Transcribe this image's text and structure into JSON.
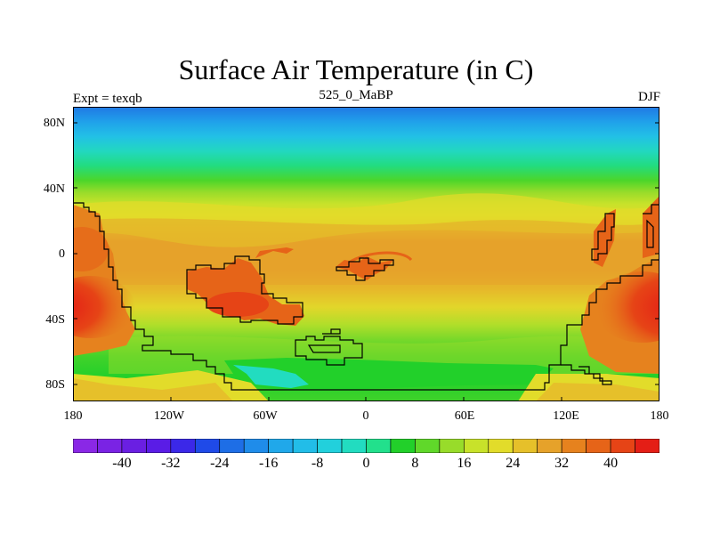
{
  "title": "Surface Air Temperature (in C)",
  "left_label": "Expt = texqb",
  "center_label": "525_0_MaBP",
  "right_label": "DJF",
  "lat_ticks": [
    "80N",
    "40N",
    "0",
    "40S",
    "80S"
  ],
  "lon_ticks": [
    "180",
    "120W",
    "60W",
    "0",
    "60E",
    "120E",
    "180"
  ],
  "colorbar": {
    "colors": [
      "#8a28e6",
      "#7a23e4",
      "#6a1fe2",
      "#5a1ce6",
      "#3b28e8",
      "#1f4ae8",
      "#1e6ee6",
      "#1f8cea",
      "#20a8ea",
      "#22bde8",
      "#22d0dc",
      "#22dcc0",
      "#22e08c",
      "#22d02a",
      "#60d82a",
      "#98dc2a",
      "#c8e22a",
      "#e2dc2a",
      "#e6c02a",
      "#e6a22a",
      "#e6821e",
      "#e66418",
      "#e64416",
      "#e41e16"
    ],
    "labels": [
      "-40",
      "-32",
      "-24",
      "-16",
      "-8",
      "0",
      "8",
      "16",
      "24",
      "32",
      "40"
    ]
  }
}
